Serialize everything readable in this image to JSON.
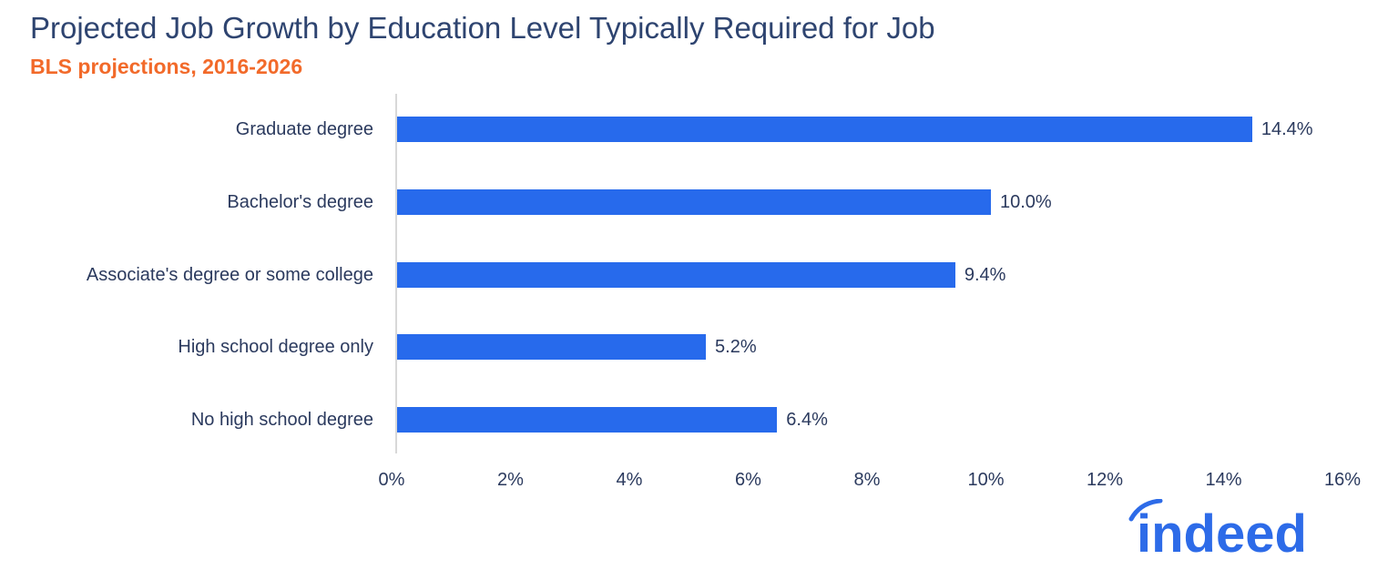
{
  "header": {
    "title": "Projected Job Growth by Education Level Typically Required for Job",
    "subtitle": "BLS projections, 2016-2026"
  },
  "colors": {
    "bar": "#276aec",
    "subtitle": "#f26a2a",
    "text": "#2b3a5e",
    "logo": "#2d6be8"
  },
  "logo": {
    "text": "indeed"
  },
  "chart_data": {
    "type": "bar",
    "orientation": "horizontal",
    "title": "Projected Job Growth by Education Level Typically Required for Job",
    "subtitle": "BLS projections, 2016-2026",
    "categories": [
      "Graduate degree",
      "Bachelor's degree",
      "Associate's degree or some college",
      "High school degree only",
      "No high school degree"
    ],
    "values": [
      14.4,
      10.0,
      9.4,
      5.2,
      6.4
    ],
    "value_labels": [
      "14.4%",
      "10.0%",
      "9.4%",
      "5.2%",
      "6.4%"
    ],
    "xlabel": "",
    "ylabel": "",
    "xlim": [
      0,
      16
    ],
    "x_ticks": [
      "0%",
      "2%",
      "4%",
      "6%",
      "8%",
      "10%",
      "12%",
      "14%",
      "16%"
    ],
    "grid": false,
    "legend": null
  }
}
